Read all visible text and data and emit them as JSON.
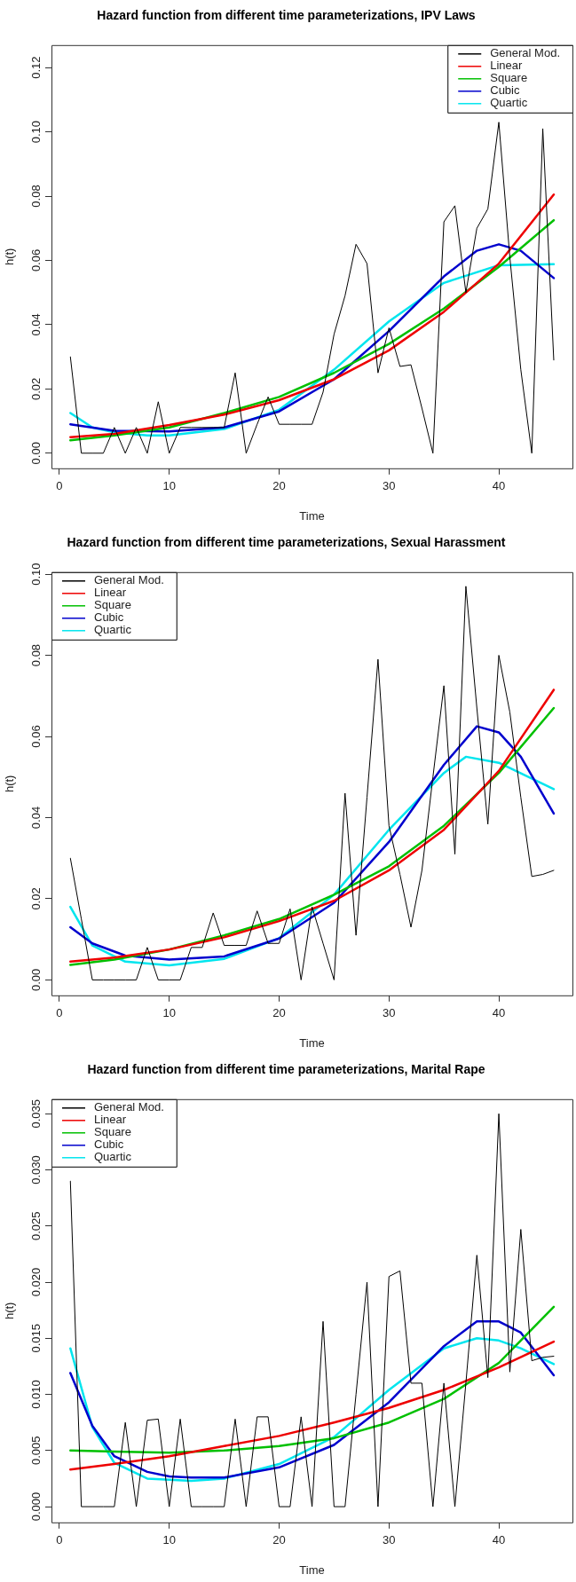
{
  "chart_data": [
    {
      "type": "line",
      "title": "Hazard function from different time parameterizations, IPV Laws",
      "xlabel": "Time",
      "ylabel": "h(t)",
      "xlim": [
        -0.72,
        46.7
      ],
      "xticks": [
        0,
        10,
        20,
        30,
        40
      ],
      "ylim": [
        -0.0047,
        0.127
      ],
      "yticks": [
        {
          "value": 0,
          "label": "0.00"
        },
        {
          "value": 0.02,
          "label": "0.02"
        },
        {
          "value": 0.04,
          "label": "0.04"
        },
        {
          "value": 0.06,
          "label": "0.06"
        },
        {
          "value": 0.08,
          "label": "0.08"
        },
        {
          "value": 0.1,
          "label": "0.10"
        },
        {
          "value": 0.12,
          "label": "0.12"
        }
      ],
      "grid": false,
      "legend": "top right",
      "marker": "none",
      "line_style": "solid",
      "series": [
        {
          "name": "General Mod.",
          "color": "#000000",
          "x": [
            1,
            2,
            3,
            4,
            5,
            6,
            7,
            8,
            9,
            10,
            11,
            12,
            13,
            14,
            15,
            16,
            17,
            18,
            19,
            20,
            21,
            22,
            23,
            24,
            25,
            26,
            27,
            28,
            29,
            30,
            31,
            32,
            33,
            34,
            35,
            36,
            37,
            38,
            39,
            40,
            41,
            42,
            43,
            44,
            45
          ],
          "values": [
            0.03,
            0,
            0,
            0,
            0.008,
            0,
            0.008,
            0,
            0.016,
            0,
            0.008,
            0.008,
            0.008,
            0.008,
            0.008,
            0.025,
            0,
            0.009,
            0.0175,
            0.009,
            0.009,
            0.009,
            0.009,
            0.019,
            0.037,
            0.049,
            0.065,
            0.059,
            0.025,
            0.039,
            0.027,
            0.0275,
            0.014,
            0,
            0.072,
            0.077,
            0.05,
            0.07,
            0.076,
            0.103,
            0.061,
            0.026,
            0,
            0.101,
            0.029
          ]
        },
        {
          "name": "Linear",
          "color": "#ee0000",
          "x": [
            1,
            5,
            10,
            15,
            20,
            25,
            30,
            35,
            40,
            45
          ],
          "values": [
            0.005,
            0.006,
            0.0088,
            0.012,
            0.0165,
            0.023,
            0.032,
            0.044,
            0.059,
            0.0805
          ]
        },
        {
          "name": "Square",
          "color": "#00c000",
          "x": [
            1,
            5,
            10,
            15,
            20,
            25,
            30,
            35,
            40,
            45
          ],
          "values": [
            0.004,
            0.0055,
            0.008,
            0.0125,
            0.0175,
            0.025,
            0.034,
            0.045,
            0.058,
            0.0725
          ]
        },
        {
          "name": "Cubic",
          "color": "#0000cd",
          "x": [
            1,
            5,
            10,
            15,
            20,
            25,
            30,
            35,
            38,
            40,
            42,
            45
          ],
          "values": [
            0.009,
            0.007,
            0.0068,
            0.008,
            0.013,
            0.023,
            0.038,
            0.055,
            0.063,
            0.065,
            0.063,
            0.0545
          ]
        },
        {
          "name": "Quartic",
          "color": "#00e5ee",
          "x": [
            1,
            3,
            5,
            8,
            10,
            15,
            20,
            25,
            30,
            35,
            40,
            45
          ],
          "values": [
            0.0125,
            0.008,
            0.0065,
            0.0055,
            0.0055,
            0.0075,
            0.0135,
            0.026,
            0.041,
            0.053,
            0.0585,
            0.0588
          ]
        }
      ]
    },
    {
      "type": "line",
      "title": "Hazard function from different time parameterizations, Sexual Harassment",
      "xlabel": "Time",
      "ylabel": "h(t)",
      "xlim": [
        -0.72,
        46.7
      ],
      "xticks": [
        0,
        10,
        20,
        30,
        40
      ],
      "ylim": [
        -0.0038,
        0.1005
      ],
      "yticks": [
        {
          "value": 0,
          "label": "0.00"
        },
        {
          "value": 0.02,
          "label": "0.02"
        },
        {
          "value": 0.04,
          "label": "0.04"
        },
        {
          "value": 0.06,
          "label": "0.06"
        },
        {
          "value": 0.08,
          "label": "0.08"
        },
        {
          "value": 0.1,
          "label": "0.10"
        }
      ],
      "grid": false,
      "legend": "top left",
      "marker": "none",
      "line_style": "solid",
      "series": [
        {
          "name": "General Mod.",
          "color": "#000000",
          "x": [
            1,
            2,
            3,
            4,
            5,
            6,
            7,
            8,
            9,
            10,
            11,
            12,
            13,
            14,
            15,
            16,
            17,
            18,
            19,
            20,
            21,
            22,
            23,
            24,
            25,
            26,
            27,
            28,
            29,
            30,
            31,
            32,
            33,
            34,
            35,
            36,
            37,
            38,
            39,
            40,
            41,
            42,
            43,
            44,
            45
          ],
          "values": [
            0.03,
            0.015,
            0,
            0,
            0,
            0,
            0,
            0.008,
            0,
            0,
            0,
            0.008,
            0.008,
            0.0165,
            0.0085,
            0.0085,
            0.0085,
            0.017,
            0.009,
            0.009,
            0.0175,
            0,
            0.018,
            0.009,
            0,
            0.046,
            0.011,
            0.045,
            0.079,
            0.038,
            0.026,
            0.013,
            0.027,
            0.05,
            0.0725,
            0.031,
            0.097,
            0.067,
            0.0384,
            0.08,
            0.066,
            0.045,
            0.0255,
            0.026,
            0.027
          ]
        },
        {
          "name": "Linear",
          "color": "#ee0000",
          "x": [
            1,
            5,
            10,
            15,
            20,
            25,
            30,
            35,
            40,
            45
          ],
          "values": [
            0.0045,
            0.0055,
            0.0075,
            0.0105,
            0.0145,
            0.0195,
            0.027,
            0.037,
            0.0515,
            0.0715
          ]
        },
        {
          "name": "Square",
          "color": "#00c000",
          "x": [
            1,
            5,
            10,
            15,
            20,
            25,
            30,
            35,
            40,
            45
          ],
          "values": [
            0.0037,
            0.005,
            0.0075,
            0.011,
            0.015,
            0.021,
            0.028,
            0.038,
            0.051,
            0.067
          ]
        },
        {
          "name": "Cubic",
          "color": "#0000cd",
          "x": [
            1,
            3,
            6,
            10,
            15,
            20,
            25,
            30,
            35,
            38,
            40,
            42,
            45
          ],
          "values": [
            0.013,
            0.009,
            0.006,
            0.005,
            0.0058,
            0.0102,
            0.019,
            0.034,
            0.053,
            0.0625,
            0.061,
            0.055,
            0.041
          ]
        },
        {
          "name": "Quartic",
          "color": "#00e5ee",
          "x": [
            1,
            3,
            6,
            10,
            15,
            20,
            25,
            30,
            35,
            37,
            40,
            45
          ],
          "values": [
            0.018,
            0.0085,
            0.0045,
            0.0036,
            0.0052,
            0.0103,
            0.021,
            0.037,
            0.051,
            0.055,
            0.0535,
            0.047
          ]
        }
      ]
    },
    {
      "type": "line",
      "title": "Hazard function from different time parameterizations, Marital Rape",
      "xlabel": "Time",
      "ylabel": "h(t)",
      "xlim": [
        -0.72,
        46.7
      ],
      "xticks": [
        0,
        10,
        20,
        30,
        40
      ],
      "ylim": [
        -0.0014,
        0.0363
      ],
      "yticks": [
        {
          "value": 0,
          "label": "0.000"
        },
        {
          "value": 0.005,
          "label": "0.005"
        },
        {
          "value": 0.01,
          "label": "0.010"
        },
        {
          "value": 0.015,
          "label": "0.015"
        },
        {
          "value": 0.02,
          "label": "0.020"
        },
        {
          "value": 0.025,
          "label": "0.025"
        },
        {
          "value": 0.03,
          "label": "0.030"
        },
        {
          "value": 0.035,
          "label": "0.035"
        }
      ],
      "grid": false,
      "legend": "top left",
      "marker": "none",
      "line_style": "solid",
      "series": [
        {
          "name": "General Mod.",
          "color": "#000000",
          "x": [
            1,
            2,
            3,
            4,
            5,
            6,
            7,
            8,
            9,
            10,
            11,
            12,
            13,
            14,
            15,
            16,
            17,
            18,
            19,
            20,
            21,
            22,
            23,
            24,
            25,
            26,
            27,
            28,
            29,
            30,
            31,
            32,
            33,
            34,
            35,
            36,
            37,
            38,
            39,
            40,
            41,
            42,
            43,
            44,
            45
          ],
          "values": [
            0.029,
            0,
            0,
            0,
            0,
            0.0075,
            0,
            0.0077,
            0.0078,
            0,
            0.0078,
            0,
            0,
            0,
            0,
            0.0078,
            0,
            0.008,
            0.008,
            0,
            0,
            0.008,
            0,
            0.0165,
            0,
            0,
            0.01,
            0.02,
            0,
            0.0205,
            0.021,
            0.011,
            0.011,
            0,
            0.011,
            0,
            0.011,
            0.0224,
            0.0115,
            0.035,
            0.012,
            0.0247,
            0.013,
            0.0133,
            0.0134
          ]
        },
        {
          "name": "Linear",
          "color": "#ee0000",
          "x": [
            1,
            5,
            10,
            15,
            20,
            25,
            30,
            35,
            40,
            45
          ],
          "values": [
            0.0033,
            0.0038,
            0.0045,
            0.0054,
            0.0063,
            0.0075,
            0.0088,
            0.0104,
            0.0124,
            0.0147
          ]
        },
        {
          "name": "Square",
          "color": "#00c000",
          "x": [
            1,
            5,
            10,
            15,
            20,
            25,
            30,
            35,
            40,
            45
          ],
          "values": [
            0.005,
            0.0049,
            0.0048,
            0.005,
            0.0054,
            0.0061,
            0.0075,
            0.0096,
            0.0128,
            0.0178
          ]
        },
        {
          "name": "Cubic",
          "color": "#0000cd",
          "x": [
            1,
            3,
            5,
            8,
            10,
            12,
            15,
            20,
            25,
            30,
            35,
            38,
            40,
            42,
            45
          ],
          "values": [
            0.0119,
            0.0072,
            0.0045,
            0.0031,
            0.0027,
            0.0026,
            0.0026,
            0.0035,
            0.0055,
            0.0093,
            0.0143,
            0.0165,
            0.0165,
            0.0155,
            0.0117
          ]
        },
        {
          "name": "Quartic",
          "color": "#00e5ee",
          "x": [
            1,
            3,
            5,
            8,
            12,
            15,
            20,
            25,
            30,
            35,
            38,
            40,
            42,
            45
          ],
          "values": [
            0.0141,
            0.0071,
            0.0039,
            0.0025,
            0.0023,
            0.0025,
            0.0038,
            0.0062,
            0.0104,
            0.0141,
            0.015,
            0.0148,
            0.0141,
            0.0127
          ]
        }
      ]
    }
  ]
}
